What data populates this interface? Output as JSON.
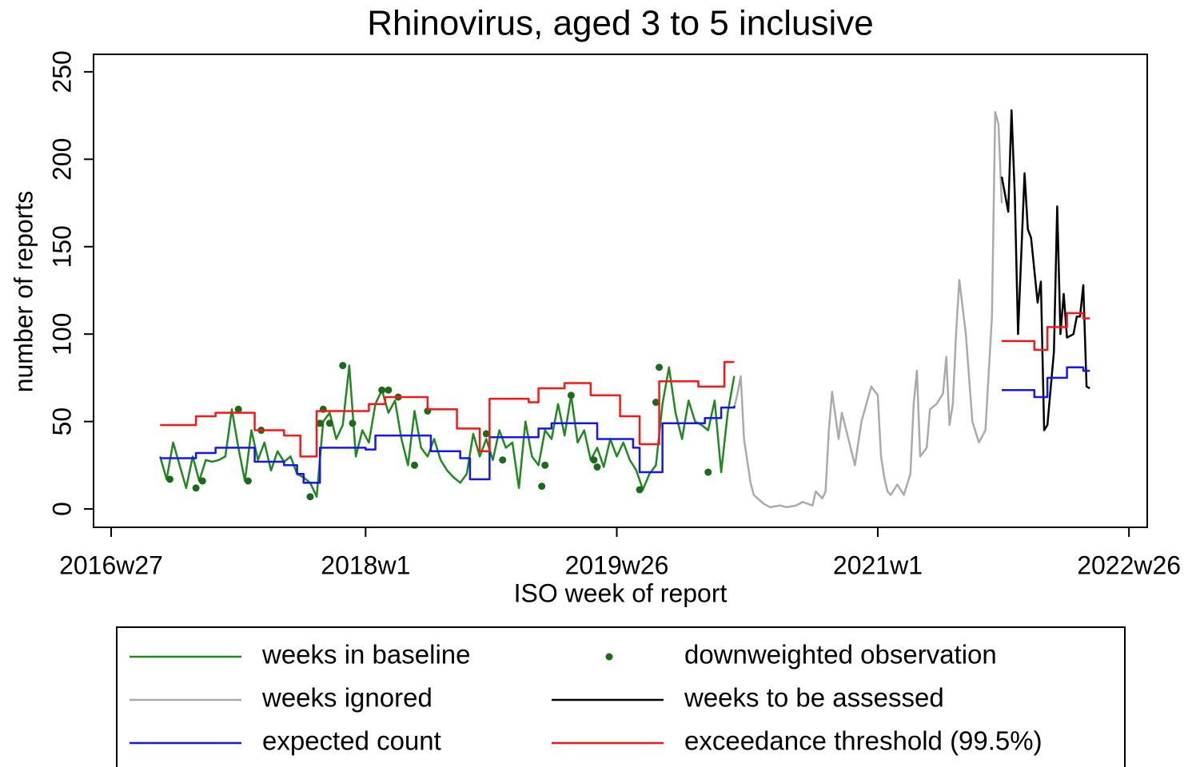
{
  "chart_data": {
    "type": "line",
    "title": "Rhinovirus, aged 3 to 5 inclusive",
    "xlabel": "ISO week of report",
    "ylabel": "number of reports",
    "xlim": [
      -5.4,
      317.6
    ],
    "ylim": [
      -10.5,
      260
    ],
    "xticks": [
      {
        "value": 0,
        "label": "2016w27"
      },
      {
        "value": 78,
        "label": "2018w1"
      },
      {
        "value": 155,
        "label": "2019w26"
      },
      {
        "value": 235,
        "label": "2021w1"
      },
      {
        "value": 312,
        "label": "2022w26"
      }
    ],
    "yticks": [
      0,
      50,
      100,
      150,
      200,
      250
    ],
    "grid": false,
    "series": [
      {
        "name": "weeks in baseline",
        "kind": "line",
        "color": "#1e8a1e",
        "x": [
          15,
          17,
          19,
          21,
          23,
          25,
          27,
          29,
          31,
          33,
          35,
          37,
          39,
          41,
          43,
          45,
          47,
          49,
          51,
          53,
          55,
          57,
          59,
          61,
          63,
          65,
          67,
          69,
          71,
          73,
          75,
          77,
          79,
          81,
          83,
          85,
          87,
          89,
          91,
          93,
          95,
          97,
          99,
          101,
          103,
          105,
          107,
          109,
          111,
          113,
          115,
          117,
          119,
          121,
          123,
          125,
          127,
          129,
          131,
          133,
          135,
          137,
          139,
          141,
          143,
          145,
          147,
          149,
          151,
          153,
          155,
          157,
          159,
          161,
          163,
          165,
          167,
          169,
          171,
          173,
          175,
          177,
          179,
          181,
          183,
          185,
          187,
          189,
          191
        ],
        "values": [
          30,
          17,
          38,
          25,
          12,
          30,
          16,
          28,
          27,
          28,
          30,
          57,
          35,
          16,
          45,
          28,
          38,
          22,
          33,
          27,
          30,
          20,
          18,
          15,
          7,
          50,
          55,
          40,
          48,
          82,
          30,
          45,
          38,
          60,
          68,
          55,
          62,
          40,
          25,
          56,
          35,
          30,
          40,
          28,
          22,
          18,
          15,
          20,
          43,
          30,
          40,
          28,
          45,
          35,
          38,
          12,
          50,
          30,
          25,
          45,
          40,
          60,
          42,
          65,
          38,
          45,
          28,
          35,
          24,
          40,
          30,
          38,
          28,
          22,
          11,
          20,
          25,
          60,
          81,
          55,
          40,
          62,
          50,
          48,
          45,
          62,
          21,
          55,
          76
        ]
      },
      {
        "name": "downweighted observation",
        "kind": "scatter",
        "color": "#1a6b1a",
        "x": [
          18,
          26,
          28,
          39,
          42,
          46,
          61,
          64,
          65,
          67,
          71,
          74,
          83,
          85,
          88,
          93,
          97,
          115,
          120,
          132,
          133,
          141,
          148,
          149,
          162,
          167,
          168,
          183
        ],
        "values": [
          17,
          12,
          16,
          57,
          16,
          45,
          7,
          49,
          57,
          49,
          82,
          49,
          68,
          68,
          64,
          25,
          56,
          43,
          28,
          13,
          25,
          65,
          28,
          24,
          11,
          61,
          81,
          21
        ]
      },
      {
        "name": "weeks ignored",
        "kind": "line",
        "color": "#aaaaaa",
        "x": [
          191,
          192,
          193,
          194,
          196,
          197,
          200,
          202,
          205,
          207,
          210,
          212,
          215,
          216,
          218,
          219,
          220,
          221,
          223,
          224,
          226,
          228,
          230,
          233,
          235,
          236,
          237,
          238,
          239,
          241,
          243,
          245,
          246,
          247,
          248,
          250,
          251,
          253,
          255,
          256,
          257,
          258,
          259,
          260,
          262,
          264,
          266,
          268,
          270,
          271,
          272,
          273
        ],
        "values": [
          58,
          66,
          76,
          40,
          15,
          8,
          3,
          1,
          2,
          1,
          2,
          4,
          2,
          10,
          6,
          10,
          45,
          67,
          40,
          55,
          40,
          25,
          50,
          70,
          65,
          30,
          18,
          10,
          8,
          14,
          8,
          20,
          60,
          79,
          30,
          35,
          57,
          60,
          66,
          87,
          48,
          60,
          100,
          131,
          100,
          50,
          38,
          45,
          110,
          227,
          220,
          175
        ]
      },
      {
        "name": "weeks to be assessed",
        "kind": "line",
        "color": "#000000",
        "x": [
          273,
          275,
          276,
          277,
          278,
          280,
          281,
          282,
          284,
          285,
          286,
          287,
          289,
          290,
          291,
          292,
          293,
          295,
          296,
          297,
          298,
          299,
          300
        ],
        "values": [
          190,
          170,
          228,
          180,
          100,
          192,
          160,
          155,
          118,
          130,
          45,
          48,
          90,
          173,
          100,
          123,
          98,
          100,
          110,
          110,
          128,
          70,
          69
        ]
      },
      {
        "name": "expected count",
        "kind": "line",
        "drawstyle": "steps-post",
        "color": "#1414ff",
        "x": [
          15,
          26,
          32,
          44,
          53,
          57,
          59,
          64,
          78,
          81,
          98,
          107,
          110,
          116,
          131,
          135,
          149,
          160,
          162,
          169,
          182,
          187,
          191,
          192,
          273,
          283,
          287,
          293,
          298,
          300
        ],
        "values": [
          29,
          32,
          35,
          27,
          25,
          20,
          15,
          35,
          34,
          42,
          33,
          29,
          17,
          41,
          46,
          49,
          40,
          35,
          21,
          49,
          52,
          58,
          59,
          null,
          68,
          64,
          75,
          81,
          79,
          79
        ]
      },
      {
        "name": "exceedance threshold (99.5%)",
        "kind": "line",
        "drawstyle": "steps-post",
        "color": "#ff1414",
        "x": [
          15,
          26,
          32,
          44,
          53,
          58,
          63,
          79,
          84,
          97,
          106,
          113,
          116,
          128,
          131,
          139,
          147,
          156,
          162,
          168,
          180,
          188,
          191,
          192,
          273,
          283,
          287,
          293,
          298,
          300
        ],
        "values": [
          48,
          53,
          55,
          45,
          42,
          30,
          56,
          60,
          64,
          57,
          46,
          33,
          63,
          61,
          69,
          72,
          65,
          53,
          37,
          73,
          70,
          84,
          84,
          null,
          96,
          91,
          104,
          112,
          109,
          109
        ]
      }
    ]
  }
}
